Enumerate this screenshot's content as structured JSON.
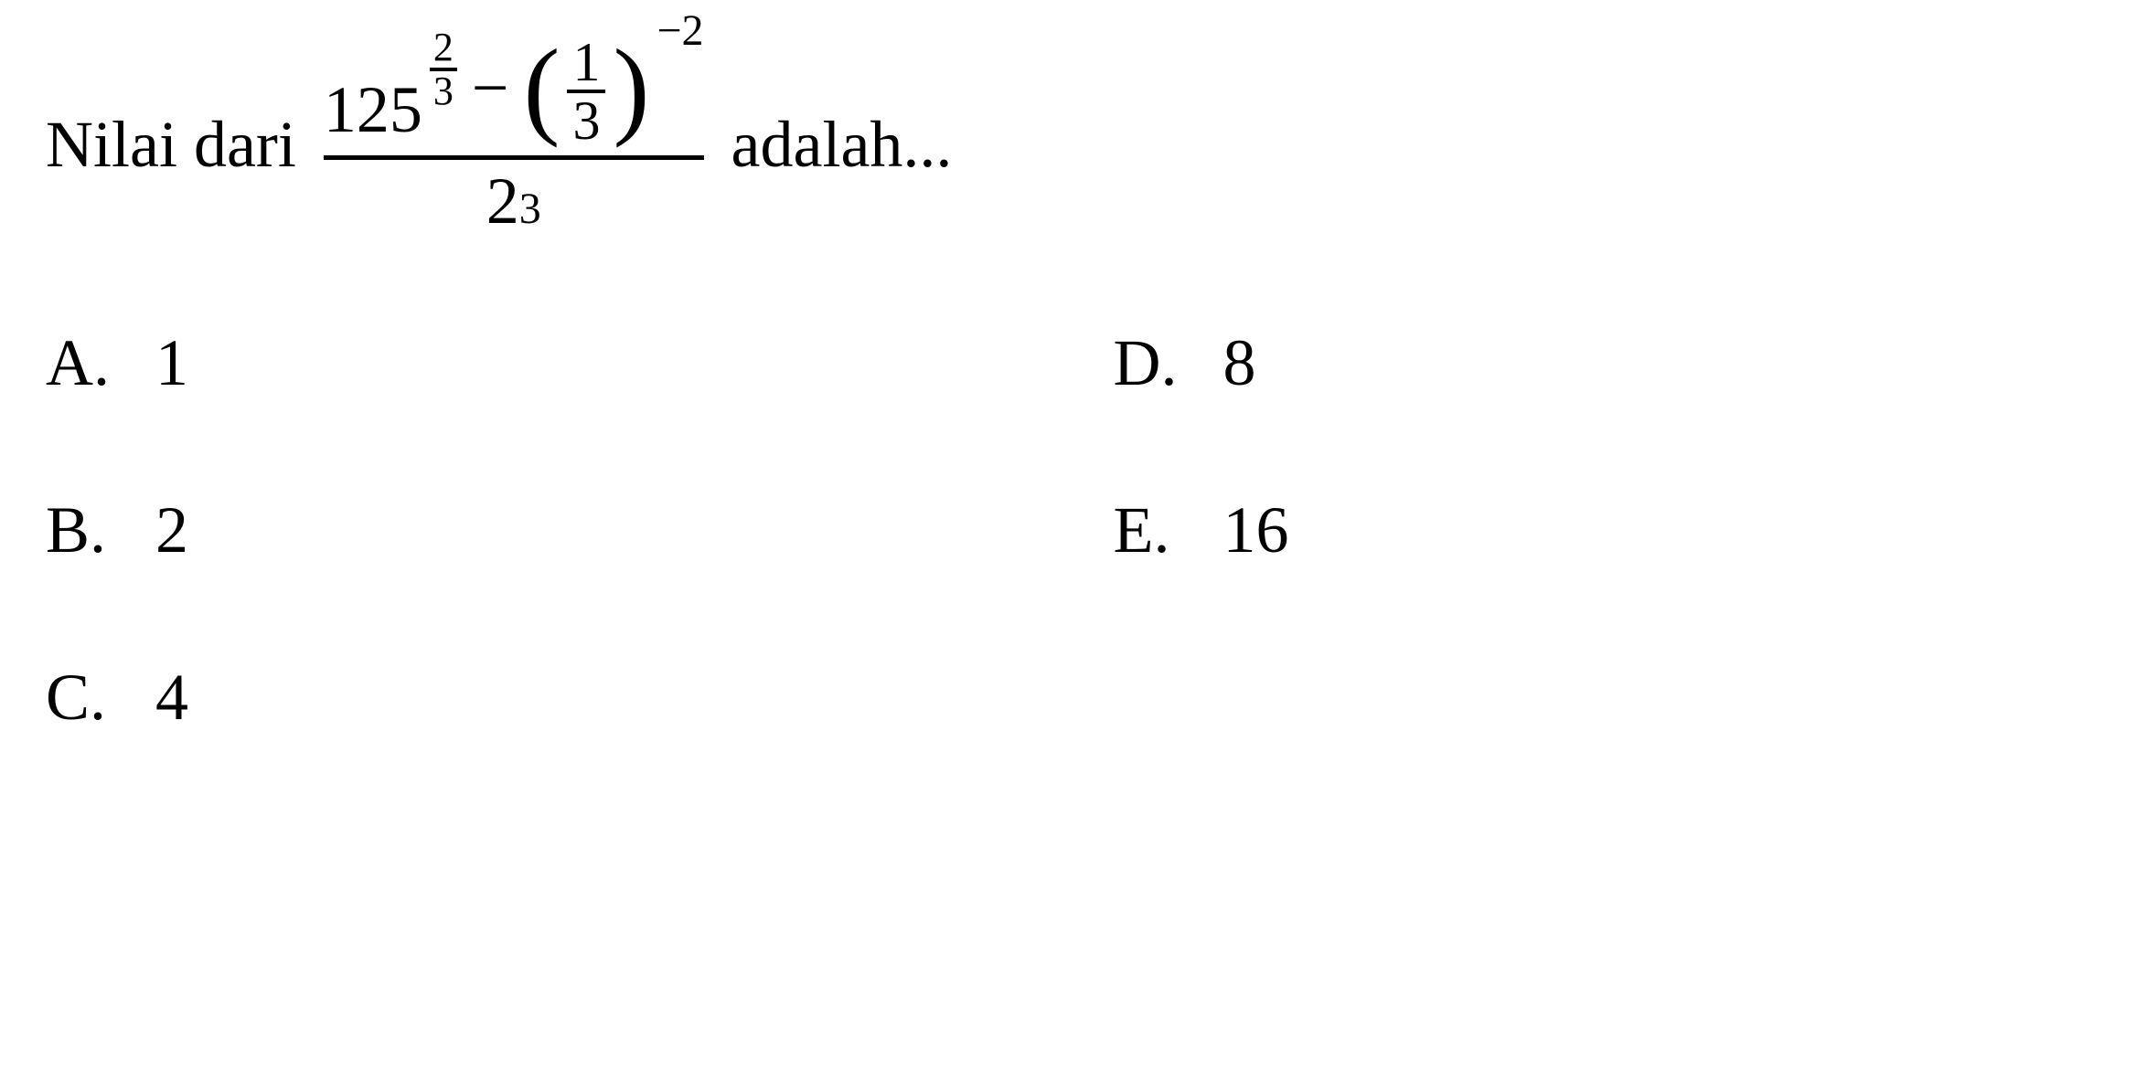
{
  "question": {
    "prefix": "Nilai dari",
    "suffix": "adalah...",
    "expression": {
      "numerator": {
        "term1_base": "125",
        "term1_exp_top": "2",
        "term1_exp_bot": "3",
        "operator": "−",
        "term2_inner_top": "1",
        "term2_inner_bot": "3",
        "term2_exp": "−2"
      },
      "denominator": {
        "base": "2",
        "exp": "3"
      }
    }
  },
  "options": {
    "a": {
      "letter": "A.",
      "value": "1"
    },
    "b": {
      "letter": "B.",
      "value": "2"
    },
    "c": {
      "letter": "C.",
      "value": "4"
    },
    "d": {
      "letter": "D.",
      "value": "8"
    },
    "e": {
      "letter": "E.",
      "value": "16"
    }
  },
  "style": {
    "background_color": "#ffffff",
    "text_color": "#000000",
    "font_family": "Times New Roman",
    "base_fontsize": 72,
    "exp_fontsize": 48,
    "small_exp_fontsize": 44
  }
}
